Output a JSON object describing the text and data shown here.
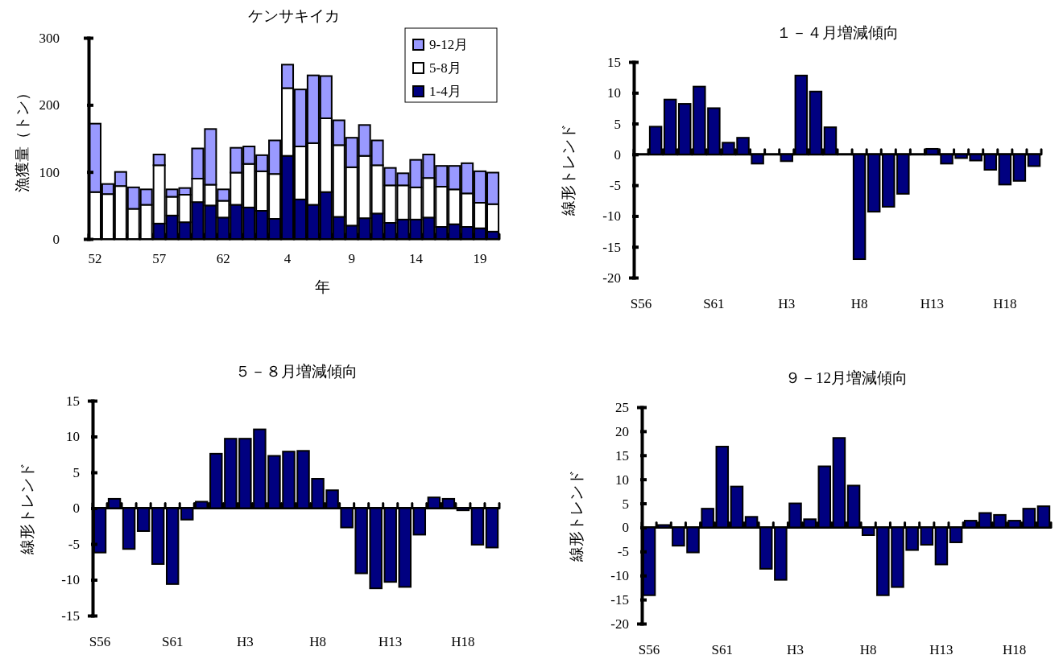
{
  "chart_data": [
    {
      "type": "bar",
      "title": "ケンサキイカ",
      "xlabel": "年",
      "ylabel": "漁獲量（トン）",
      "stacked": true,
      "legend": "top right",
      "categories": [
        "52",
        null,
        null,
        null,
        null,
        "57",
        null,
        null,
        null,
        null,
        "62",
        null,
        null,
        null,
        null,
        "4",
        null,
        null,
        null,
        null,
        "9",
        null,
        null,
        null,
        null,
        "14",
        null,
        null,
        null,
        null,
        "19",
        null
      ],
      "ylim": [
        0,
        300
      ],
      "yticks": [
        0,
        100,
        200,
        300
      ],
      "series": [
        {
          "name": "1-4月",
          "color": "#000080",
          "values": [
            0,
            0,
            0,
            0,
            0,
            23,
            35,
            25,
            55,
            50,
            32,
            51,
            47,
            42,
            30,
            124,
            59,
            51,
            70,
            33,
            20,
            31,
            38,
            24,
            29,
            29,
            32,
            18,
            22,
            18,
            16,
            11
          ]
        },
        {
          "name": "5-8月",
          "color": "#ffffff",
          "values": [
            70,
            67,
            79,
            45,
            51,
            87,
            28,
            41,
            35,
            31,
            25,
            48,
            65,
            59,
            67,
            101,
            79,
            92,
            110,
            107,
            87,
            93,
            72,
            56,
            51,
            48,
            59,
            60,
            52,
            50,
            38,
            41
          ]
        },
        {
          "name": "9-12月",
          "color": "#9999ff",
          "values": [
            102,
            15,
            21,
            32,
            23,
            16,
            11,
            10,
            45,
            83,
            17,
            37,
            26,
            24,
            50,
            35,
            85,
            101,
            63,
            37,
            44,
            46,
            37,
            26,
            18,
            41,
            35,
            31,
            35,
            45,
            47,
            47
          ]
        }
      ]
    },
    {
      "type": "bar",
      "title": "１－４月増減傾向",
      "ylabel": "線形トレンド",
      "color": "#000080",
      "categories": [
        "S56",
        null,
        null,
        null,
        null,
        "S61",
        null,
        null,
        null,
        null,
        "H3",
        null,
        null,
        null,
        null,
        "H8",
        null,
        null,
        null,
        null,
        "H13",
        null,
        null,
        null,
        null,
        "H18",
        null,
        null
      ],
      "ylim": [
        -20,
        15
      ],
      "yticks": [
        -20,
        -15,
        -10,
        -5,
        0,
        5,
        10,
        15
      ],
      "values": [
        0,
        4.5,
        8.9,
        8.2,
        11.0,
        7.5,
        1.9,
        2.7,
        -1.5,
        0,
        -1.1,
        12.8,
        10.2,
        4.4,
        0,
        -17.0,
        -9.3,
        -8.5,
        -6.4,
        0,
        0.9,
        -1.5,
        -0.6,
        -1.0,
        -2.5,
        -4.9,
        -4.3,
        -1.9
      ]
    },
    {
      "type": "bar",
      "title": "５－８月増減傾向",
      "ylabel": "線形トレンド",
      "color": "#000080",
      "categories": [
        "S56",
        null,
        null,
        null,
        null,
        "S61",
        null,
        null,
        null,
        null,
        "H3",
        null,
        null,
        null,
        null,
        "H8",
        null,
        null,
        null,
        null,
        "H13",
        null,
        null,
        null,
        null,
        "H18",
        null,
        null
      ],
      "ylim": [
        -15,
        15
      ],
      "yticks": [
        -15,
        -10,
        -5,
        0,
        5,
        10,
        15
      ],
      "values": [
        -6.2,
        1.3,
        -5.7,
        -3.2,
        -7.8,
        -10.6,
        -1.6,
        0.9,
        7.6,
        9.7,
        9.7,
        11.0,
        7.3,
        7.9,
        8.0,
        4.1,
        2.5,
        -2.7,
        -9.1,
        -11.2,
        -10.3,
        -11.0,
        -3.7,
        1.5,
        1.3,
        -0.3,
        -5.1,
        -5.5
      ]
    },
    {
      "type": "bar",
      "title": "９－12月増減傾向",
      "ylabel": "線形トレンド",
      "color": "#000080",
      "categories": [
        "S56",
        null,
        null,
        null,
        null,
        "S61",
        null,
        null,
        null,
        null,
        "H3",
        null,
        null,
        null,
        null,
        "H8",
        null,
        null,
        null,
        null,
        "H13",
        null,
        null,
        null,
        null,
        "H18",
        null,
        null
      ],
      "ylim": [
        -20,
        25
      ],
      "yticks": [
        -20,
        -15,
        -10,
        -5,
        0,
        5,
        10,
        15,
        20,
        25
      ],
      "values": [
        -14.1,
        0.5,
        -3.8,
        -5.2,
        3.9,
        16.8,
        8.5,
        2.2,
        -8.6,
        -10.9,
        5.0,
        1.7,
        12.7,
        18.6,
        8.7,
        -1.6,
        -14.1,
        -12.4,
        -4.7,
        -3.6,
        -7.7,
        -3.1,
        1.4,
        3.0,
        2.6,
        1.4,
        3.9,
        4.4
      ]
    }
  ]
}
